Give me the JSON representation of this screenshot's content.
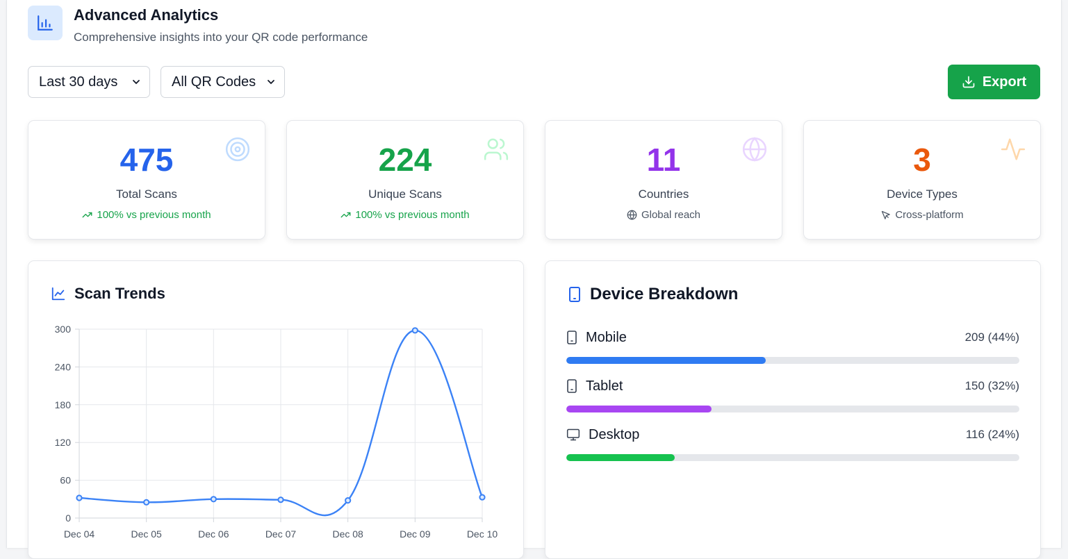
{
  "header": {
    "title": "Advanced Analytics",
    "subtitle": "Comprehensive insights into your QR code performance",
    "icon": "bar-chart-icon"
  },
  "filters": {
    "range": "Last 30 days",
    "codes": "All QR Codes",
    "export_label": "Export"
  },
  "stats": [
    {
      "value": "475",
      "label": "Total Scans",
      "sub": "100% vs previous month",
      "color": "#2563eb",
      "sub_color": "#16a34a",
      "icon": "target-icon"
    },
    {
      "value": "224",
      "label": "Unique Scans",
      "sub": "100% vs previous month",
      "color": "#16a34a",
      "sub_color": "#16a34a",
      "icon": "users-icon"
    },
    {
      "value": "11",
      "label": "Countries",
      "sub": "Global reach",
      "color": "#9333ea",
      "sub_color": "#4b5563",
      "icon": "globe-icon"
    },
    {
      "value": "3",
      "label": "Device Types",
      "sub": "Cross-platform",
      "color": "#ea580c",
      "sub_color": "#4b5563",
      "icon": "activity-icon"
    }
  ],
  "trends": {
    "title": "Scan Trends"
  },
  "devices": {
    "title": "Device Breakdown",
    "items": [
      {
        "name": "Mobile",
        "value": "209 (44%)",
        "fraction": 0.44,
        "color": "#2f7bf2"
      },
      {
        "name": "Tablet",
        "value": "150 (32%)",
        "fraction": 0.32,
        "color": "#a846f2"
      },
      {
        "name": "Desktop",
        "value": "116 (24%)",
        "fraction": 0.24,
        "color": "#16c24f"
      }
    ]
  },
  "chart_data": {
    "type": "line",
    "title": "Scan Trends",
    "categories": [
      "Dec 04",
      "Dec 05",
      "Dec 06",
      "Dec 07",
      "Dec 08",
      "Dec 09",
      "Dec 10"
    ],
    "series": [
      {
        "name": "Scans",
        "values": [
          32,
          25,
          30,
          29,
          28,
          298,
          33
        ]
      }
    ],
    "yticks": [
      "0",
      "60",
      "120",
      "180",
      "240",
      "300"
    ],
    "ylim": [
      0,
      300
    ],
    "grid": true,
    "color": "#3b82f6"
  }
}
